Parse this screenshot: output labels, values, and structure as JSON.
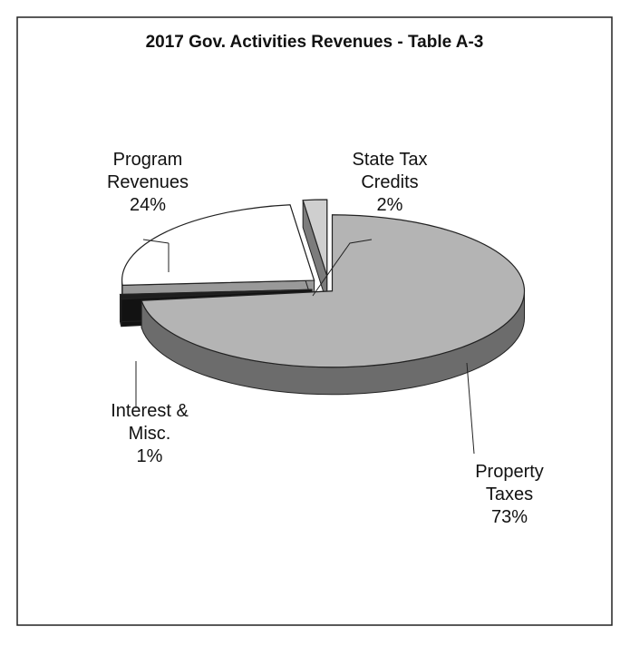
{
  "chart_data": {
    "type": "pie",
    "title": "2017 Gov. Activities Revenues - Table A-3",
    "categories": [
      "Property\nTaxes",
      "Interest &\nMisc.",
      "Program\nRevenues",
      "State Tax\nCredits"
    ],
    "values": [
      73,
      1,
      24,
      2
    ],
    "value_labels": [
      "73%",
      "1%",
      "24%",
      "2%"
    ],
    "colors": [
      "#b4b4b4",
      "#1e1e1e",
      "#ffffff",
      "#cfcfcf"
    ]
  }
}
